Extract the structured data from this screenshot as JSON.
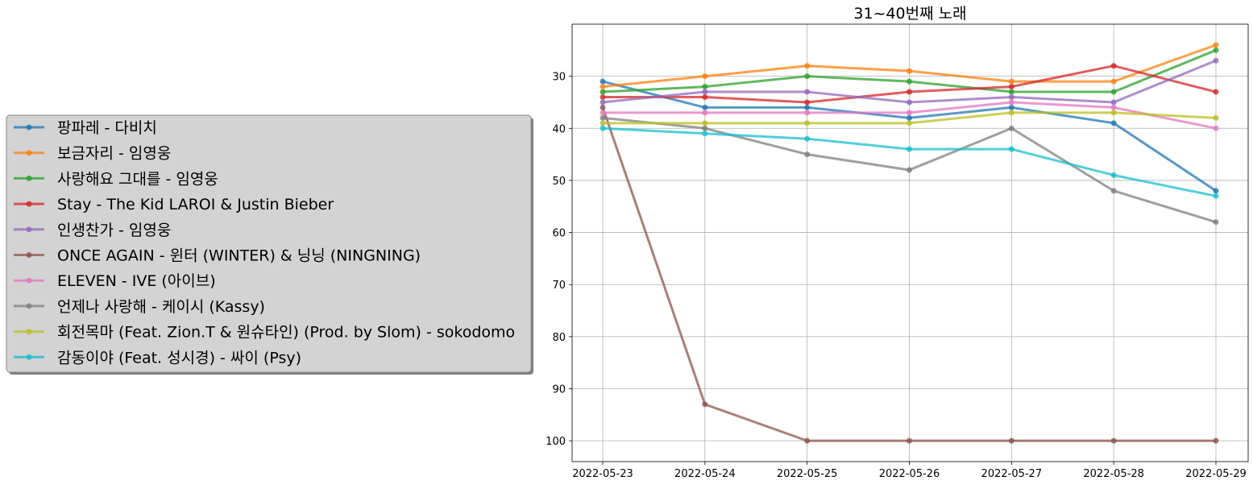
{
  "chart_data": {
    "type": "line",
    "title": "31~40번째 노래",
    "xlabel": "",
    "ylabel": "",
    "y_inverted": true,
    "ylim": [
      104,
      20
    ],
    "y_ticks": [
      30,
      40,
      50,
      60,
      70,
      80,
      90,
      100
    ],
    "grid": true,
    "legend_position": "left, outside plot",
    "categories": [
      "2022-05-23",
      "2022-05-24",
      "2022-05-25",
      "2022-05-26",
      "2022-05-27",
      "2022-05-28",
      "2022-05-29"
    ],
    "series": [
      {
        "name": "팡파레 - 다비치",
        "color": "#1f77b4",
        "values": [
          31,
          36,
          36,
          38,
          36,
          39,
          52
        ]
      },
      {
        "name": "보금자리 - 임영웅",
        "color": "#ff7f0e",
        "values": [
          32,
          30,
          28,
          29,
          31,
          31,
          24
        ]
      },
      {
        "name": "사랑해요 그대를 - 임영웅",
        "color": "#2ca02c",
        "values": [
          33,
          32,
          30,
          31,
          33,
          33,
          25
        ]
      },
      {
        "name": "Stay - The Kid LAROI & Justin Bieber",
        "color": "#d62728",
        "values": [
          34,
          34,
          35,
          33,
          32,
          28,
          33
        ]
      },
      {
        "name": "인생찬가 - 임영웅",
        "color": "#9467bd",
        "values": [
          35,
          33,
          33,
          35,
          34,
          35,
          27
        ]
      },
      {
        "name": "ONCE AGAIN - 윈터 (WINTER) & 닝닝 (NINGNING)",
        "color": "#8c564b",
        "values": [
          36,
          93,
          100,
          100,
          100,
          100,
          100
        ]
      },
      {
        "name": "ELEVEN - IVE (아이브)",
        "color": "#e377c2",
        "values": [
          37,
          37,
          37,
          37,
          35,
          36,
          40
        ]
      },
      {
        "name": "언제나 사랑해 - 케이시 (Kassy)",
        "color": "#7f7f7f",
        "values": [
          38,
          40,
          45,
          48,
          40,
          52,
          58
        ]
      },
      {
        "name": "회전목마 (Feat. Zion.T & 원슈타인) (Prod. by Slom) - sokodomo",
        "color": "#bcbd22",
        "values": [
          39,
          39,
          39,
          39,
          37,
          37,
          38
        ]
      },
      {
        "name": "감동이야 (Feat. 성시경) - 싸이 (Psy)",
        "color": "#17becf",
        "values": [
          40,
          41,
          42,
          44,
          44,
          49,
          53
        ]
      }
    ]
  }
}
